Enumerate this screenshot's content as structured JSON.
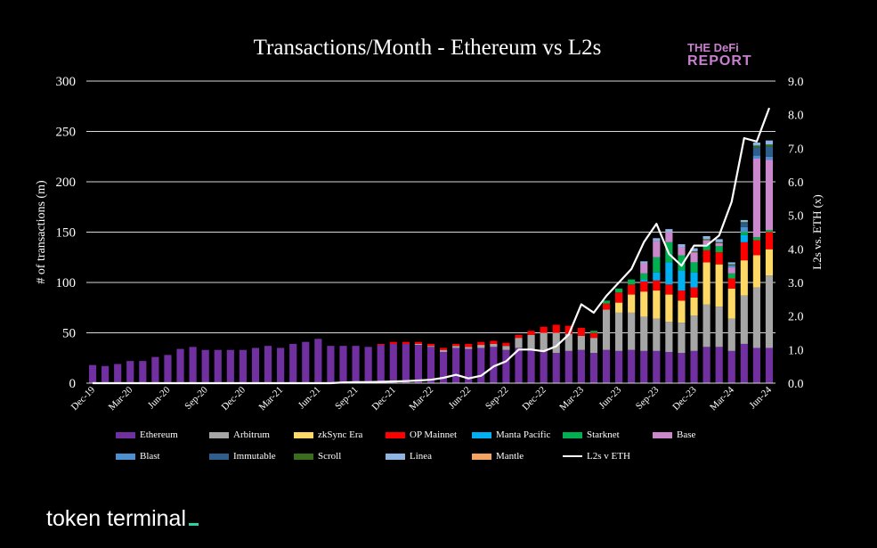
{
  "title": "Transactions/Month - Ethereum vs L2s",
  "logo": {
    "line1": "THE DeFi",
    "line2": "REPORT"
  },
  "brand": {
    "name": "token terminal"
  },
  "chart_data": {
    "type": "bar",
    "stacked": true,
    "title": "Transactions/Month - Ethereum vs L2s",
    "ylabel": "# of transactions (m)",
    "y2label": "L2s vs. ETH (x)",
    "ylim": [
      0,
      300
    ],
    "y2lim": [
      0,
      9
    ],
    "yticks": [
      "0",
      "50",
      "100",
      "150",
      "200",
      "250",
      "300"
    ],
    "y2ticks": [
      "0.0",
      "1.0",
      "2.0",
      "3.0",
      "4.0",
      "5.0",
      "6.0",
      "7.0",
      "8.0",
      "9.0"
    ],
    "x_tick_labels": [
      "Dec-19",
      "Mar-20",
      "Jun-20",
      "Sep-20",
      "Dec-20",
      "Mar-21",
      "Jun-21",
      "Sep-21",
      "Dec-21",
      "Mar-22",
      "Jun-22",
      "Sep-22",
      "Dec-22",
      "Mar-23",
      "Jun-23",
      "Sep-23",
      "Dec-23",
      "Mar-24",
      "Jun-24"
    ],
    "months": 55,
    "series": [
      {
        "name": "Ethereum",
        "color": "#7030a0",
        "values": [
          18,
          17,
          19,
          22,
          22,
          26,
          28,
          34,
          36,
          33,
          33,
          33,
          33,
          35,
          37,
          35,
          39,
          41,
          44,
          37,
          37,
          37,
          36,
          38,
          39,
          39,
          38,
          36,
          31,
          35,
          34,
          35,
          36,
          33,
          35,
          33,
          32,
          30,
          32,
          33,
          30,
          33,
          32,
          33,
          32,
          32,
          31,
          30,
          32,
          36,
          36,
          32,
          39,
          35,
          35
        ]
      },
      {
        "name": "Arbitrum",
        "color": "#a6a6a6",
        "values": [
          0,
          0,
          0,
          0,
          0,
          0,
          0,
          0,
          0,
          0,
          0,
          0,
          0,
          0,
          0,
          0,
          0,
          0,
          0,
          0,
          0,
          0,
          0,
          0,
          0,
          0,
          1,
          1,
          2,
          2,
          2,
          3,
          3,
          4,
          10,
          15,
          18,
          20,
          17,
          14,
          15,
          40,
          38,
          37,
          34,
          32,
          30,
          30,
          35,
          42,
          40,
          32,
          48,
          60,
          72
        ]
      },
      {
        "name": "zkSync Era",
        "color": "#ffd966",
        "values": [
          0,
          0,
          0,
          0,
          0,
          0,
          0,
          0,
          0,
          0,
          0,
          0,
          0,
          0,
          0,
          0,
          0,
          0,
          0,
          0,
          0,
          0,
          0,
          0,
          0,
          0,
          0,
          0,
          0,
          0,
          0,
          0,
          0,
          0,
          0,
          0,
          0,
          0,
          0,
          0,
          0,
          0,
          10,
          18,
          25,
          28,
          27,
          22,
          18,
          42,
          42,
          30,
          35,
          32,
          26
        ]
      },
      {
        "name": "OP Mainnet",
        "color": "#ff0000",
        "values": [
          0,
          0,
          0,
          0,
          0,
          0,
          0,
          0,
          0,
          0,
          0,
          0,
          0,
          0,
          0,
          0,
          0,
          0,
          0,
          0,
          0,
          0,
          0,
          1,
          2,
          2,
          2,
          2,
          2,
          2,
          3,
          3,
          3,
          3,
          3,
          4,
          6,
          8,
          8,
          8,
          5,
          6,
          10,
          10,
          10,
          10,
          10,
          10,
          10,
          12,
          12,
          10,
          18,
          15,
          17
        ]
      },
      {
        "name": "Manta Pacific",
        "color": "#00b0f0",
        "values": [
          0,
          0,
          0,
          0,
          0,
          0,
          0,
          0,
          0,
          0,
          0,
          0,
          0,
          0,
          0,
          0,
          0,
          0,
          0,
          0,
          0,
          0,
          0,
          0,
          0,
          0,
          0,
          0,
          0,
          0,
          0,
          0,
          0,
          0,
          0,
          0,
          0,
          0,
          0,
          0,
          0,
          0,
          0,
          0,
          2,
          8,
          22,
          20,
          15,
          0,
          0,
          0,
          7,
          0,
          0
        ]
      },
      {
        "name": "Starknet",
        "color": "#00b050",
        "values": [
          0,
          0,
          0,
          0,
          0,
          0,
          0,
          0,
          0,
          0,
          0,
          0,
          0,
          0,
          0,
          0,
          0,
          0,
          0,
          0,
          0,
          0,
          0,
          0,
          0,
          0,
          0,
          0,
          0,
          0,
          0,
          0,
          0,
          0,
          0,
          0,
          0,
          0,
          0,
          0,
          2,
          3,
          4,
          5,
          6,
          15,
          20,
          15,
          10,
          6,
          6,
          5,
          3,
          3,
          2
        ]
      },
      {
        "name": "Base",
        "color": "#cc88cc",
        "values": [
          0,
          0,
          0,
          0,
          0,
          0,
          0,
          0,
          0,
          0,
          0,
          0,
          0,
          0,
          0,
          0,
          0,
          0,
          0,
          0,
          0,
          0,
          0,
          0,
          0,
          0,
          0,
          0,
          0,
          0,
          0,
          0,
          0,
          0,
          0,
          0,
          0,
          0,
          0,
          0,
          0,
          0,
          0,
          0,
          10,
          16,
          10,
          8,
          10,
          4,
          3,
          6,
          0,
          78,
          70
        ]
      },
      {
        "name": "Blast",
        "color": "#4e8fcf",
        "values": [
          0,
          0,
          0,
          0,
          0,
          0,
          0,
          0,
          0,
          0,
          0,
          0,
          0,
          0,
          0,
          0,
          0,
          0,
          0,
          0,
          0,
          0,
          0,
          0,
          0,
          0,
          0,
          0,
          0,
          0,
          0,
          0,
          0,
          0,
          0,
          0,
          0,
          0,
          0,
          0,
          0,
          0,
          0,
          0,
          0,
          0,
          0,
          0,
          0,
          0,
          0,
          2,
          5,
          3,
          3
        ]
      },
      {
        "name": "Immutable",
        "color": "#2e5e8e",
        "values": [
          0,
          0,
          0,
          0,
          0,
          0,
          0,
          0,
          0,
          0,
          0,
          0,
          0,
          0,
          0,
          0,
          0,
          0,
          0,
          0,
          0,
          0,
          0,
          0,
          0,
          0,
          0,
          0,
          0,
          0,
          0,
          0,
          0,
          0,
          0,
          0,
          0,
          0,
          0,
          0,
          0,
          0,
          0,
          0,
          0,
          0,
          0,
          0,
          0,
          0,
          0,
          0,
          4,
          8,
          10
        ]
      },
      {
        "name": "Scroll",
        "color": "#3a6e1e",
        "values": [
          0,
          0,
          0,
          0,
          0,
          0,
          0,
          0,
          0,
          0,
          0,
          0,
          0,
          0,
          0,
          0,
          0,
          0,
          0,
          0,
          0,
          0,
          0,
          0,
          0,
          0,
          0,
          0,
          0,
          0,
          0,
          0,
          0,
          0,
          0,
          0,
          0,
          0,
          0,
          0,
          0,
          0,
          0,
          0,
          0,
          0,
          0,
          0,
          1,
          1,
          1,
          1,
          1,
          2,
          2
        ]
      },
      {
        "name": "Linea",
        "color": "#8db4e2",
        "values": [
          0,
          0,
          0,
          0,
          0,
          0,
          0,
          0,
          0,
          0,
          0,
          0,
          0,
          0,
          0,
          0,
          0,
          0,
          0,
          0,
          0,
          0,
          0,
          0,
          0,
          0,
          0,
          0,
          0,
          0,
          0,
          0,
          0,
          0,
          0,
          0,
          0,
          0,
          0,
          0,
          0,
          0,
          0,
          0,
          2,
          3,
          3,
          3,
          3,
          3,
          3,
          2,
          2,
          3,
          4
        ]
      },
      {
        "name": "Mantle",
        "color": "#f4a460",
        "values": [
          0,
          0,
          0,
          0,
          0,
          0,
          0,
          0,
          0,
          0,
          0,
          0,
          0,
          0,
          0,
          0,
          0,
          0,
          0,
          0,
          0,
          0,
          0,
          0,
          0,
          0,
          0,
          0,
          0,
          0,
          0,
          0,
          0,
          0,
          0,
          0,
          0,
          0,
          0,
          0,
          0,
          0,
          0,
          0,
          0,
          0,
          0,
          0,
          0,
          0,
          0,
          0,
          0,
          0,
          0
        ]
      }
    ],
    "line_series": {
      "name": "L2s v ETH",
      "color": "#ffffff",
      "axis": "right",
      "values": [
        0,
        0,
        0,
        0,
        0,
        0,
        0,
        0,
        0,
        0,
        0,
        0,
        0,
        0,
        0,
        0,
        0,
        0,
        0,
        0,
        0.02,
        0.03,
        0.03,
        0.04,
        0.05,
        0.06,
        0.08,
        0.1,
        0.16,
        0.25,
        0.14,
        0.22,
        0.5,
        0.65,
        1.0,
        1.0,
        0.95,
        1.1,
        1.45,
        2.35,
        2.1,
        2.6,
        3.0,
        3.4,
        4.2,
        4.75,
        3.85,
        3.5,
        4.1,
        4.1,
        4.4,
        5.4,
        7.3,
        7.2,
        8.2
      ]
    }
  }
}
